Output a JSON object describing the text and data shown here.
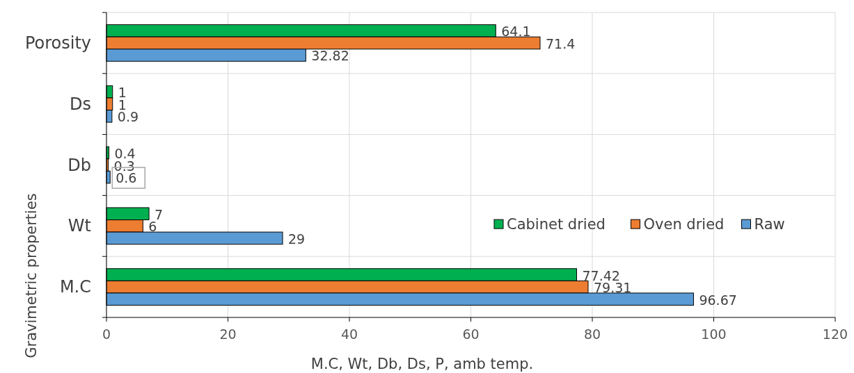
{
  "chart_data": {
    "type": "bar",
    "orientation": "horizontal",
    "xlabel": "M.C, Wt, Db, Ds, P, amb temp.",
    "ylabel": "Gravimetric properties",
    "categories": [
      "Porosity",
      "Ds",
      "Db",
      "Wt",
      "M.C"
    ],
    "series": [
      {
        "name": "Cabinet dried",
        "color": "#00b050",
        "values": [
          64.1,
          1,
          0.4,
          7,
          77.42
        ]
      },
      {
        "name": "Oven dried",
        "color": "#ed7d31",
        "values": [
          71.4,
          1,
          0.3,
          6,
          79.31
        ]
      },
      {
        "name": "Raw",
        "color": "#5b9bd5",
        "values": [
          32.82,
          0.9,
          0.6,
          29,
          96.67
        ]
      }
    ],
    "xlim": [
      0,
      120
    ],
    "xticks": [
      0,
      20,
      40,
      60,
      80,
      100,
      120
    ],
    "grid": true,
    "legend": "right",
    "data_labels": true
  }
}
